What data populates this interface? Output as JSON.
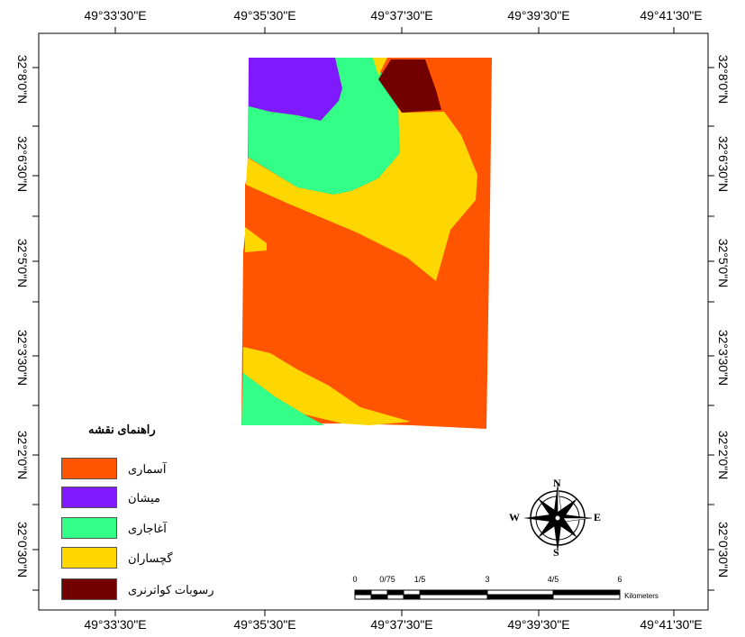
{
  "map": {
    "top_lon_labels": [
      "49°33'30\"E",
      "49°35'30\"E",
      "49°37'30\"E",
      "49°39'30\"E",
      "49°41'30\"E"
    ],
    "bottom_lon_labels": [
      "49°33'30\"E",
      "49°35'30\"E",
      "49°37'30\"E",
      "49°39'30\"E",
      "49°41'30\"E"
    ],
    "lat_labels": [
      "32°8'0\"N",
      "32°6'30\"N",
      "32°5'0\"N",
      "32°3'30\"N",
      "32°2'0\"N",
      "32°0'30\"N"
    ],
    "colors": {
      "asmari": "#ff5500",
      "mishan": "#7f1aff",
      "aghajari": "#33ff88",
      "gachsaran": "#ffd700",
      "quaternary": "#730000",
      "background": "#ffffff"
    }
  },
  "legend": {
    "title": "راهنمای نقشه",
    "items": [
      {
        "label": "آسماری",
        "color": "#ff5500"
      },
      {
        "label": "میشان",
        "color": "#7f1aff"
      },
      {
        "label": "آغاجاری",
        "color": "#33ff88"
      },
      {
        "label": "گچساران",
        "color": "#ffd700"
      },
      {
        "label": "رسوبات کواترنری",
        "color": "#730000"
      }
    ]
  },
  "scale_bar": {
    "ticks": [
      "0",
      "0/75",
      "1/5",
      "3",
      "4/5",
      "6"
    ],
    "unit": "Kilometers"
  },
  "north_arrow": {
    "n": "N",
    "s": "S",
    "e": "E",
    "w": "W"
  }
}
